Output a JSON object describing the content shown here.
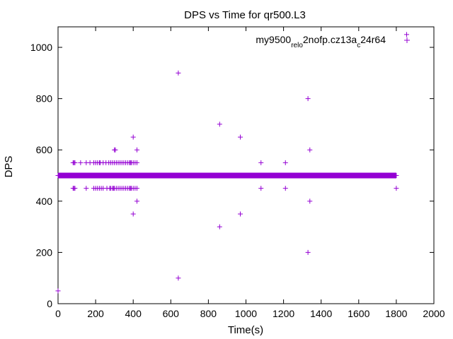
{
  "chart_data": {
    "type": "scatter",
    "title": "DPS vs Time for qr500.L3",
    "xlabel": "Time(s)",
    "ylabel": "DPS",
    "xlim": [
      0,
      2000
    ],
    "ylim": [
      0,
      1080
    ],
    "xticks": [
      0,
      200,
      400,
      600,
      800,
      1000,
      1200,
      1400,
      1600,
      1800,
      2000
    ],
    "yticks": [
      0,
      200,
      400,
      600,
      800,
      1000
    ],
    "grid": false,
    "legend_position": "top-right",
    "series": [
      {
        "name": "my9500_rel_o2nofp.cz13a_c24r64",
        "name_parts": [
          {
            "text": "my9500",
            "sub": false
          },
          {
            "text": "rel",
            "sub": true
          },
          {
            "text": "o",
            "sub": true
          },
          {
            "text": "2nofp.cz13a",
            "sub": false
          },
          {
            "text": "c",
            "sub": true
          },
          {
            "text": "24r64",
            "sub": false
          }
        ],
        "color": "#9400d3",
        "marker": "plus",
        "baseline": {
          "y": 500,
          "x_from": 0,
          "x_to": 1800
        },
        "points": [
          [
            0,
            50
          ],
          [
            0,
            500
          ],
          [
            640,
            100
          ],
          [
            640,
            900
          ],
          [
            80,
            550
          ],
          [
            85,
            550
          ],
          [
            90,
            550
          ],
          [
            120,
            550
          ],
          [
            150,
            550
          ],
          [
            170,
            550
          ],
          [
            190,
            550
          ],
          [
            200,
            550
          ],
          [
            210,
            550
          ],
          [
            220,
            550
          ],
          [
            225,
            550
          ],
          [
            240,
            550
          ],
          [
            255,
            550
          ],
          [
            270,
            550
          ],
          [
            280,
            550
          ],
          [
            290,
            550
          ],
          [
            300,
            550
          ],
          [
            310,
            550
          ],
          [
            320,
            550
          ],
          [
            330,
            550
          ],
          [
            340,
            550
          ],
          [
            350,
            550
          ],
          [
            360,
            550
          ],
          [
            370,
            550
          ],
          [
            380,
            550
          ],
          [
            385,
            550
          ],
          [
            390,
            550
          ],
          [
            400,
            550
          ],
          [
            410,
            550
          ],
          [
            420,
            550
          ],
          [
            80,
            450
          ],
          [
            85,
            450
          ],
          [
            90,
            450
          ],
          [
            150,
            450
          ],
          [
            190,
            450
          ],
          [
            200,
            450
          ],
          [
            210,
            450
          ],
          [
            220,
            450
          ],
          [
            230,
            450
          ],
          [
            240,
            450
          ],
          [
            260,
            450
          ],
          [
            275,
            450
          ],
          [
            280,
            450
          ],
          [
            290,
            450
          ],
          [
            295,
            450
          ],
          [
            300,
            450
          ],
          [
            310,
            450
          ],
          [
            320,
            450
          ],
          [
            330,
            450
          ],
          [
            340,
            450
          ],
          [
            350,
            450
          ],
          [
            360,
            450
          ],
          [
            370,
            450
          ],
          [
            380,
            450
          ],
          [
            385,
            450
          ],
          [
            390,
            450
          ],
          [
            400,
            450
          ],
          [
            410,
            450
          ],
          [
            420,
            450
          ],
          [
            300,
            600
          ],
          [
            305,
            600
          ],
          [
            400,
            650
          ],
          [
            420,
            600
          ],
          [
            420,
            400
          ],
          [
            400,
            350
          ],
          [
            860,
            700
          ],
          [
            860,
            300
          ],
          [
            970,
            650
          ],
          [
            970,
            350
          ],
          [
            1080,
            550
          ],
          [
            1080,
            450
          ],
          [
            1210,
            550
          ],
          [
            1210,
            450
          ],
          [
            1330,
            800
          ],
          [
            1330,
            200
          ],
          [
            1340,
            600
          ],
          [
            1340,
            400
          ],
          [
            1800,
            500
          ],
          [
            1800,
            450
          ],
          [
            1855,
            1050
          ]
        ]
      }
    ]
  }
}
